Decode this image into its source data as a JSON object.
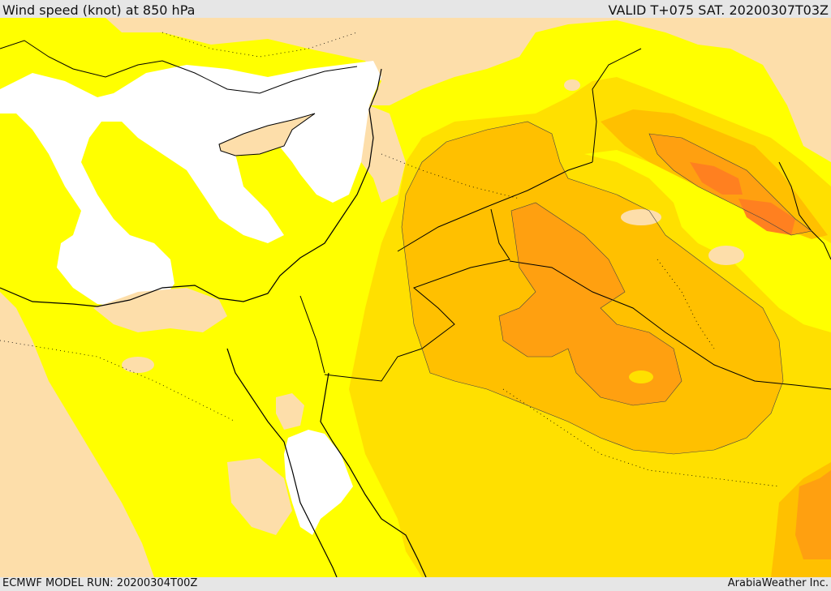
{
  "header": {
    "title": "Wind speed (knot) at 850 hPa",
    "valid": "VALID T+075 SAT. 20200307T03Z"
  },
  "footer": {
    "model_run": "ECMWF MODEL RUN: 20200304T00Z",
    "credit": "ArabiaWeather Inc."
  },
  "palette": {
    "sea_calm": "#ffffff",
    "land_calm": "#fddeaa",
    "level_1": "#ffff00",
    "level_2": "#ffe000",
    "level_3": "#ffc000",
    "level_4": "#ffa010",
    "level_5": "#ff8020",
    "coast": "#000000",
    "border": "#000000"
  }
}
